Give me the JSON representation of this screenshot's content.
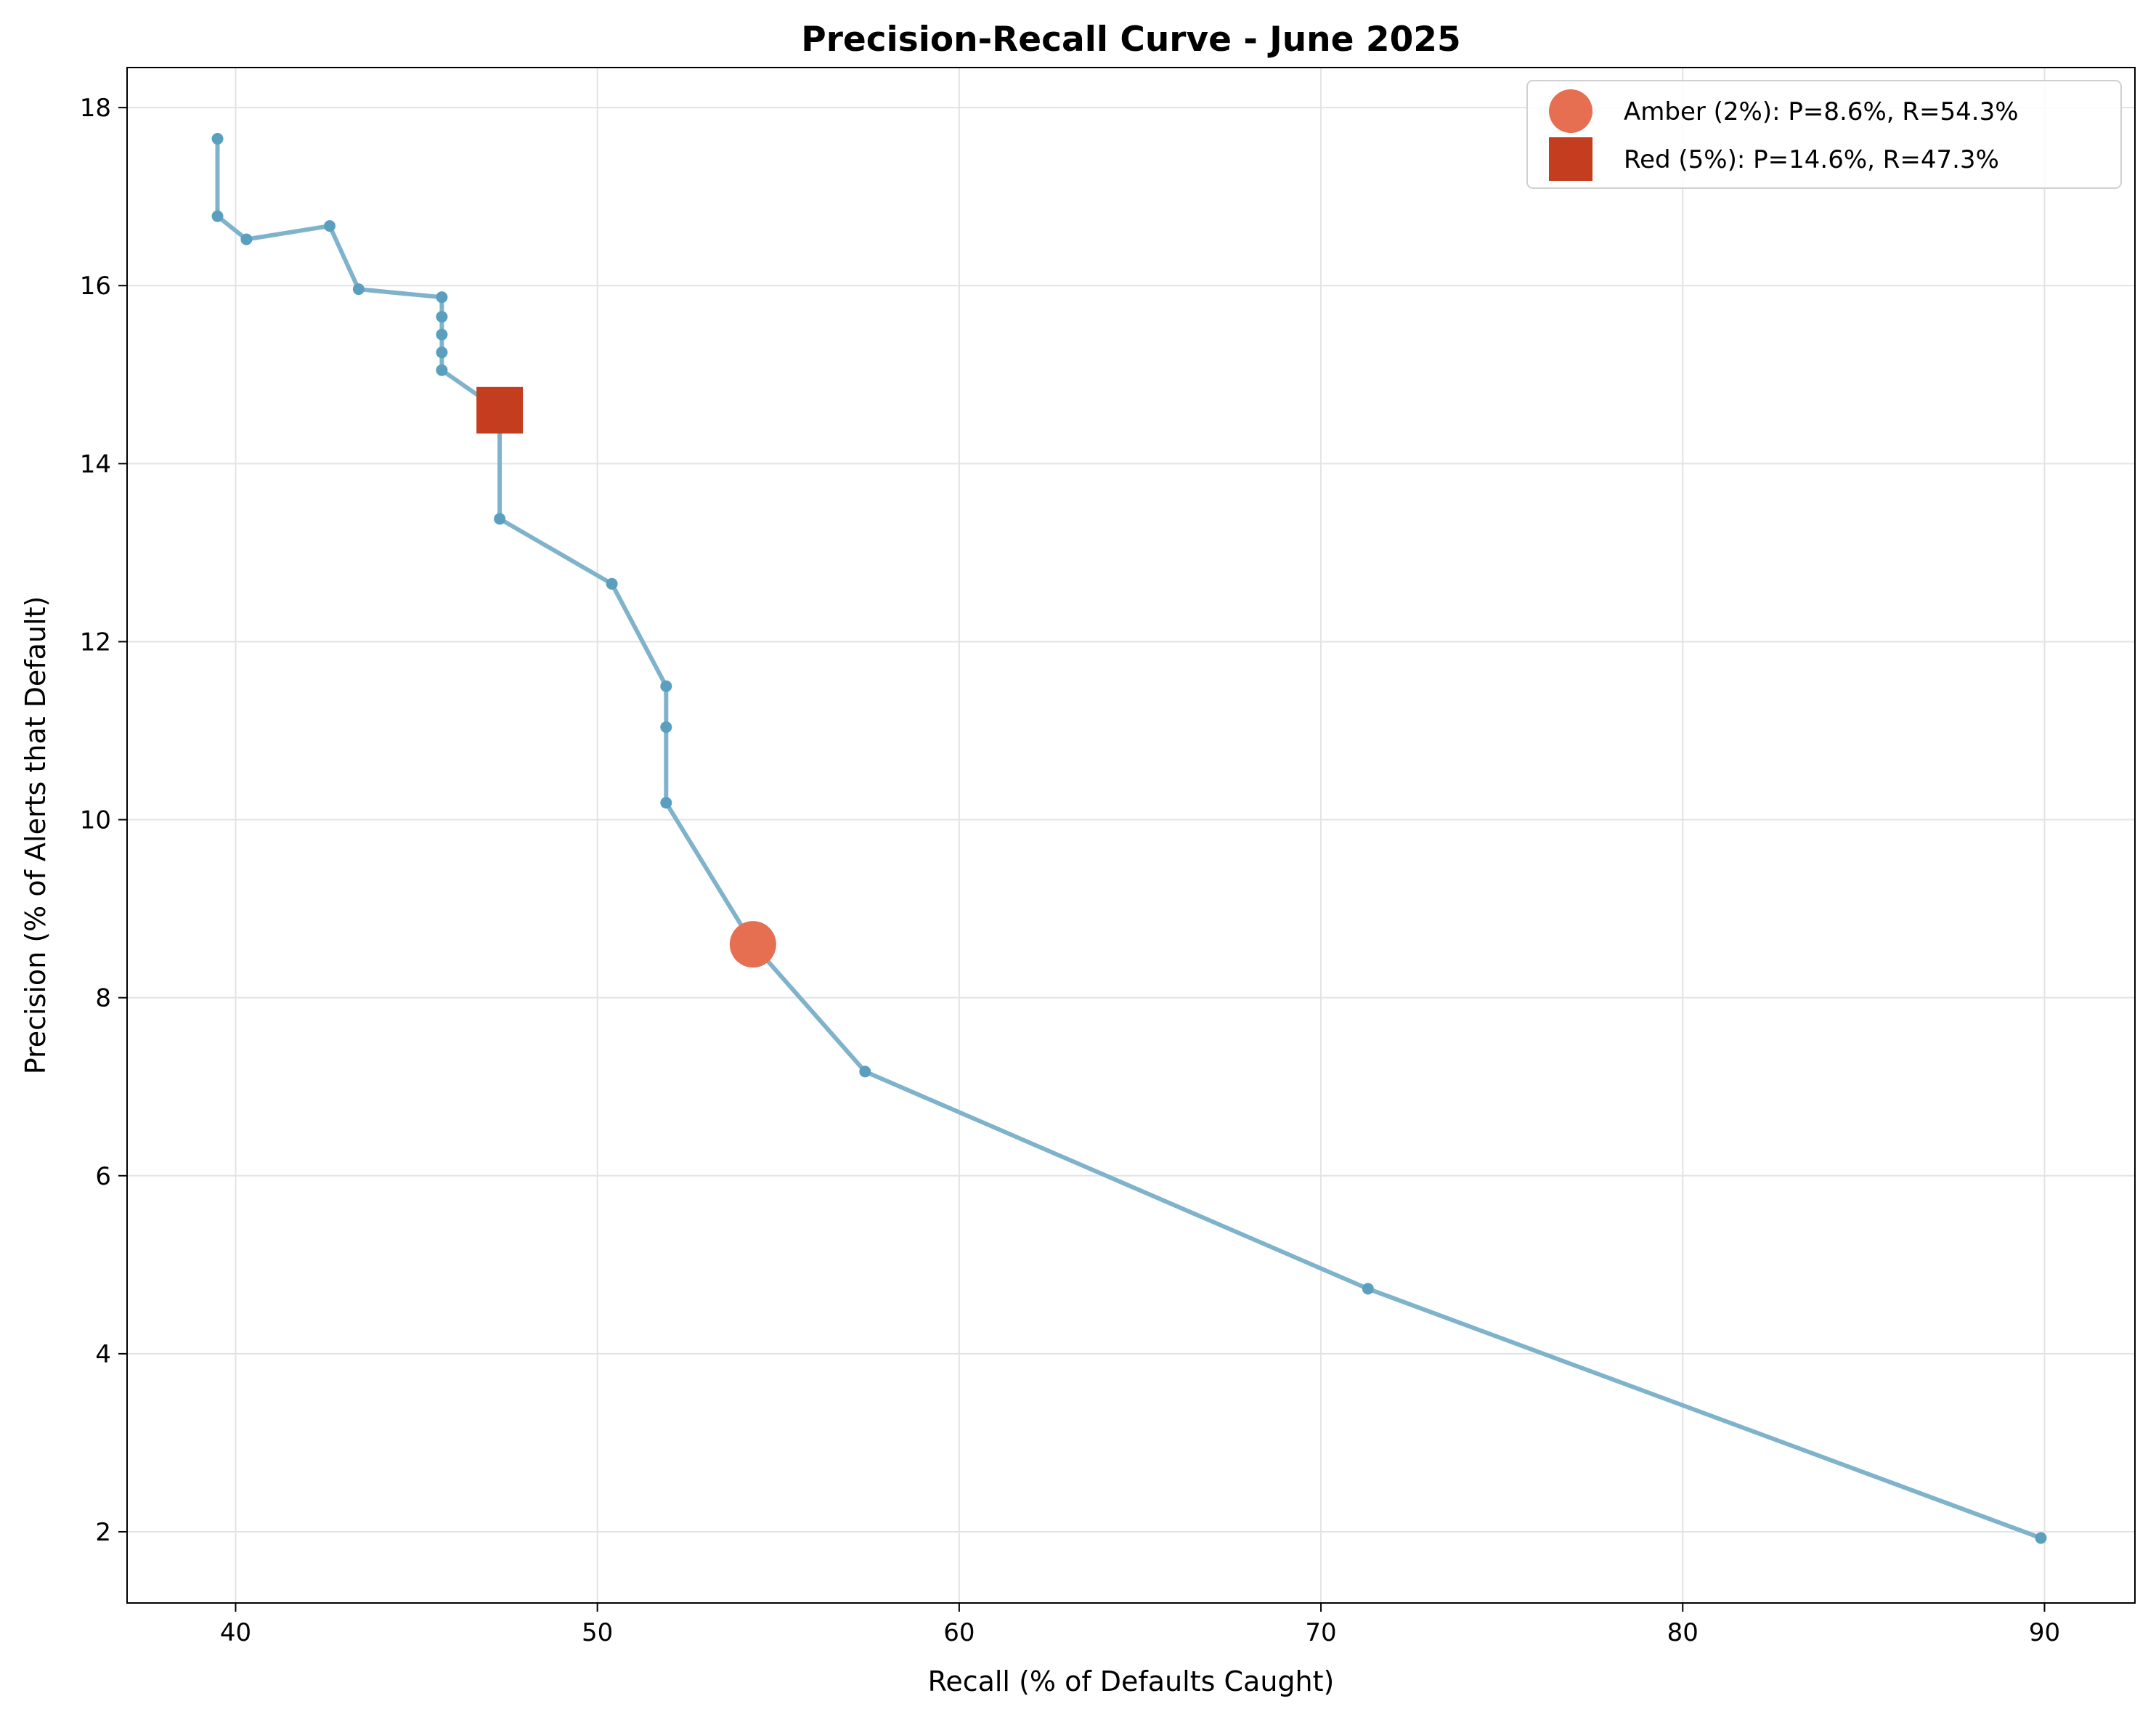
{
  "chart_data": {
    "type": "line",
    "title": "Precision-Recall Curve - June 2025",
    "xlabel": "Recall (% of Defaults Caught)",
    "ylabel": "Precision (% of Alerts that Default)",
    "xlim": [
      37,
      92.5
    ],
    "ylim": [
      1.2,
      18.45
    ],
    "xticks": [
      40,
      50,
      60,
      70,
      80,
      90
    ],
    "yticks": [
      2,
      4,
      6,
      8,
      10,
      12,
      14,
      16,
      18
    ],
    "grid": true,
    "legend_position": "top-right",
    "series": [
      {
        "color": "#7fb3cc",
        "marker_color": "#5b9fbf",
        "points": [
          {
            "x": 39.5,
            "y": 17.65
          },
          {
            "x": 39.5,
            "y": 16.78
          },
          {
            "x": 40.3,
            "y": 16.52
          },
          {
            "x": 42.6,
            "y": 16.67
          },
          {
            "x": 43.4,
            "y": 15.96
          },
          {
            "x": 45.7,
            "y": 15.87
          },
          {
            "x": 45.7,
            "y": 15.65
          },
          {
            "x": 45.7,
            "y": 15.45
          },
          {
            "x": 45.7,
            "y": 15.25
          },
          {
            "x": 45.7,
            "y": 15.05
          },
          {
            "x": 47.3,
            "y": 14.6
          },
          {
            "x": 47.3,
            "y": 13.38
          },
          {
            "x": 50.4,
            "y": 12.65
          },
          {
            "x": 51.9,
            "y": 11.5
          },
          {
            "x": 51.9,
            "y": 11.04
          },
          {
            "x": 51.9,
            "y": 10.19
          },
          {
            "x": 54.3,
            "y": 8.6
          },
          {
            "x": 57.4,
            "y": 7.17
          },
          {
            "x": 71.3,
            "y": 4.73
          },
          {
            "x": 89.9,
            "y": 1.93
          }
        ]
      }
    ],
    "highlights": [
      {
        "name": "Amber (2%): P=8.6%, R=54.3%",
        "x": 54.3,
        "y": 8.6,
        "marker": "circle",
        "color": "#e76f51"
      },
      {
        "name": "Red (5%): P=14.6%, R=47.3%",
        "x": 47.3,
        "y": 14.6,
        "marker": "square",
        "color": "#c43d1e"
      }
    ]
  }
}
